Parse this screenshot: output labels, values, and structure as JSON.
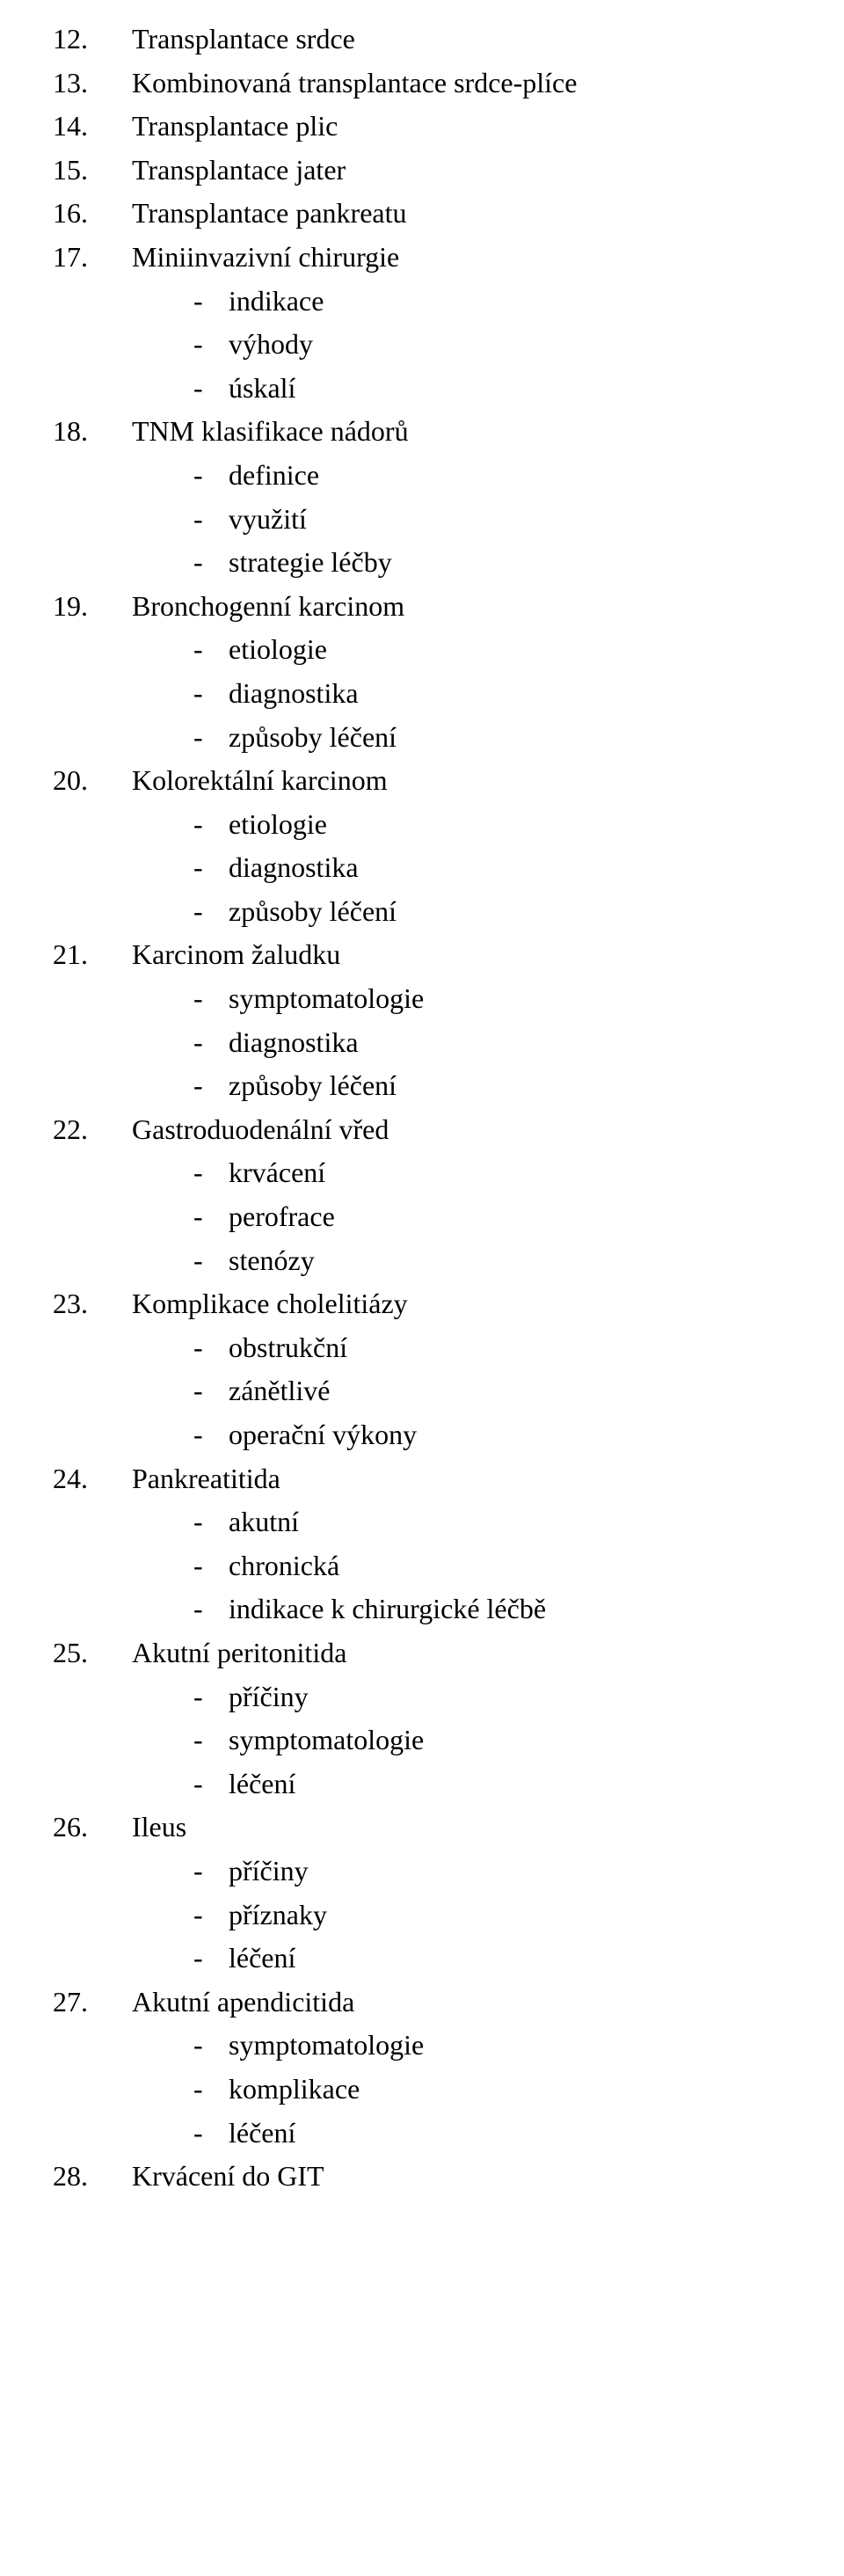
{
  "list": {
    "start": 12,
    "items": [
      {
        "text": "Transplantace srdce",
        "sub": []
      },
      {
        "text": "Kombinovaná transplantace srdce-plíce",
        "sub": []
      },
      {
        "text": "Transplantace plic",
        "sub": []
      },
      {
        "text": "Transplantace jater",
        "sub": []
      },
      {
        "text": "Transplantace pankreatu",
        "sub": []
      },
      {
        "text": "Miniinvazivní chirurgie",
        "sub": [
          "indikace",
          "výhody",
          "úskalí"
        ]
      },
      {
        "text": "TNM klasifikace nádorů",
        "sub": [
          "definice",
          "využití",
          "strategie léčby"
        ]
      },
      {
        "text": "Bronchogenní karcinom",
        "sub": [
          "etiologie",
          "diagnostika",
          "způsoby léčení"
        ]
      },
      {
        "text": "Kolorektální karcinom",
        "sub": [
          "etiologie",
          "diagnostika",
          "způsoby léčení"
        ]
      },
      {
        "text": "Karcinom žaludku",
        "sub": [
          "symptomatologie",
          "diagnostika",
          "způsoby léčení"
        ]
      },
      {
        "text": "Gastroduodenální vřed",
        "sub": [
          "krvácení",
          "perofrace",
          "stenózy"
        ]
      },
      {
        "text": "Komplikace cholelitiázy",
        "sub": [
          "obstrukční",
          "zánětlivé",
          "operační výkony"
        ]
      },
      {
        "text": "Pankreatitida",
        "sub": [
          "akutní",
          "chronická",
          "indikace k chirurgické léčbě"
        ]
      },
      {
        "text": "Akutní peritonitida",
        "sub": [
          "příčiny",
          "symptomatologie",
          "léčení"
        ]
      },
      {
        "text": "Ileus",
        "sub": [
          "příčiny",
          "příznaky",
          "léčení"
        ]
      },
      {
        "text": "Akutní apendicitida",
        "sub": [
          "symptomatologie",
          "komplikace",
          "léčení"
        ]
      },
      {
        "text": "Krvácení do GIT",
        "sub": []
      }
    ]
  },
  "style": {
    "font_family": "Times New Roman",
    "font_size_pt": 24,
    "text_color": "#000000",
    "background_color": "#ffffff",
    "number_suffix": ".",
    "sub_bullet": "-"
  }
}
